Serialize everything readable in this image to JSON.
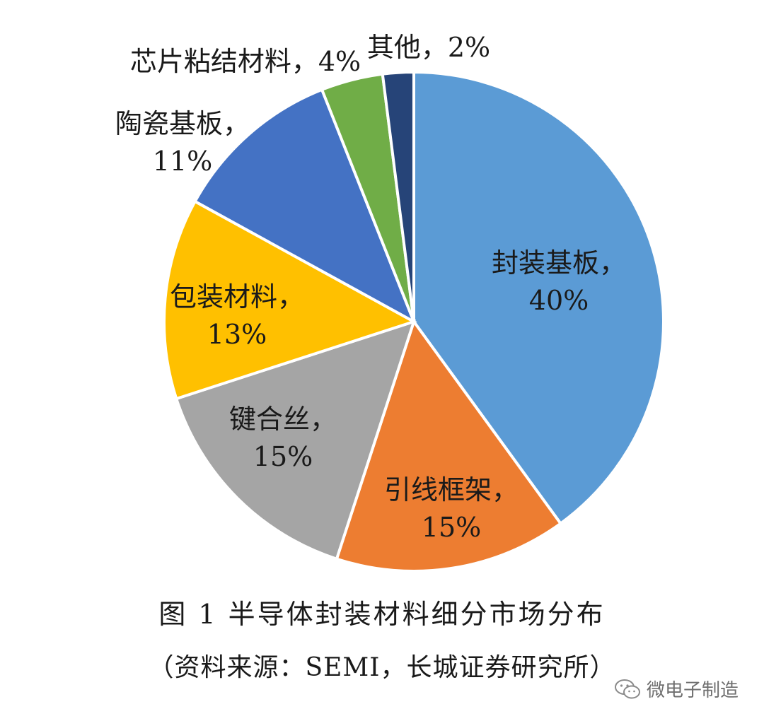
{
  "chart_data": {
    "type": "pie",
    "slices": [
      {
        "name": "封装基板",
        "value": 40,
        "label_line1": "封装基板，",
        "label_line2": "40%",
        "color": "#5B9BD5"
      },
      {
        "name": "引线框架",
        "value": 15,
        "label_line1": "引线框架，",
        "label_line2": "15%",
        "color": "#ED7D31"
      },
      {
        "name": "键合丝",
        "value": 15,
        "label_line1": "键合丝，",
        "label_line2": "15%",
        "color": "#A5A5A5"
      },
      {
        "name": "包装材料",
        "value": 13,
        "label_line1": "包装材料，",
        "label_line2": "13%",
        "color": "#FFC000"
      },
      {
        "name": "陶瓷基板",
        "value": 11,
        "label_line1": "陶瓷基板，",
        "label_line2": "11%",
        "color": "#4472C4"
      },
      {
        "name": "芯片粘结材料",
        "value": 4,
        "label_line1": "芯片粘结材料，4%",
        "label_line2": "",
        "color": "#70AD47"
      },
      {
        "name": "其他",
        "value": 2,
        "label_line1": "其他，2%",
        "label_line2": "",
        "color": "#264478"
      }
    ],
    "start_direction": "top",
    "direction": "clockwise",
    "legend": "none"
  },
  "caption": {
    "title": "图 1  半导体封装材料细分市场分布",
    "source": "（资料来源：SEMI，长城证券研究所）"
  },
  "watermark": {
    "text": "微电子制造",
    "icon": "wechat-icon"
  }
}
